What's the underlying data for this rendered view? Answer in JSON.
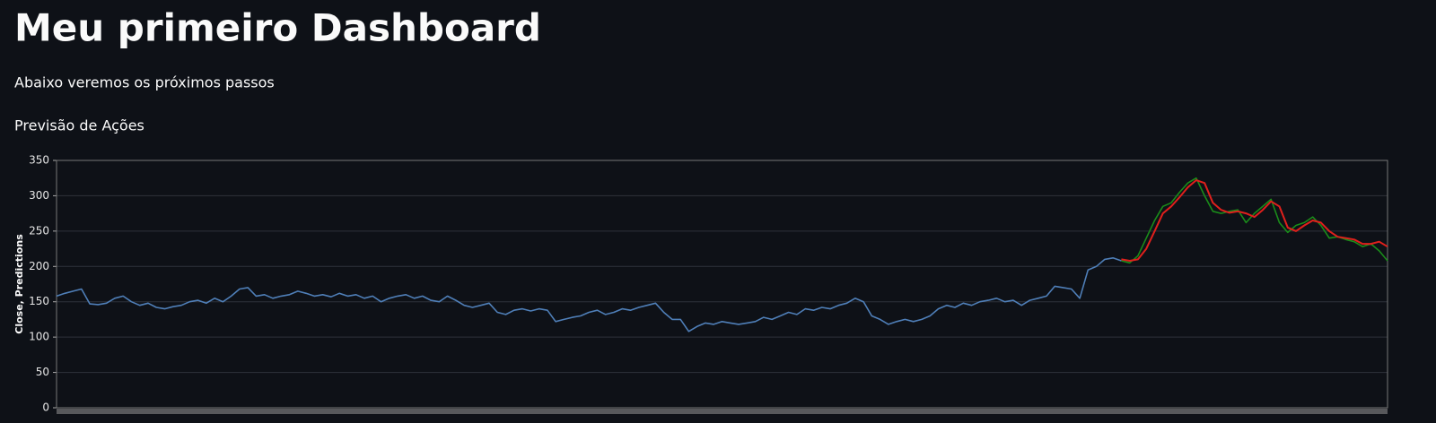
{
  "header": {
    "title": "Meu primeiro Dashboard"
  },
  "texts": [
    "Abaixo veremos os próximos passos",
    "Previsão de Ações"
  ],
  "chart_data": {
    "type": "line",
    "ylabel": "Close, Predictions",
    "ylim": [
      0,
      350
    ],
    "yticks": [
      0,
      50,
      100,
      150,
      200,
      250,
      300,
      350
    ],
    "grid": true,
    "series": [
      {
        "color": "#4f7fb8",
        "values": [
          158,
          162,
          165,
          168,
          147,
          146,
          148,
          155,
          158,
          150,
          145,
          148,
          142,
          140,
          143,
          145,
          150,
          152,
          148,
          155,
          150,
          158,
          168,
          170,
          158,
          160,
          155,
          158,
          160,
          165,
          162,
          158,
          160,
          157,
          162,
          158,
          160,
          155,
          158,
          150,
          155,
          158,
          160,
          155,
          158,
          152,
          150,
          158,
          152,
          145,
          142,
          145,
          148,
          135,
          132,
          138,
          140,
          137,
          140,
          138,
          122,
          125,
          128,
          130,
          135,
          138,
          132,
          135,
          140,
          138,
          142,
          145,
          148,
          135,
          125,
          125,
          108,
          115,
          120,
          118,
          122,
          120,
          118,
          120,
          122,
          128,
          125,
          130,
          135,
          132,
          140,
          138,
          142,
          140,
          145,
          148,
          155,
          150,
          130,
          125,
          118,
          122,
          125,
          122,
          125,
          130,
          140,
          145,
          142,
          148,
          145,
          150,
          152,
          155,
          150,
          152,
          145,
          152,
          155,
          158,
          172,
          170,
          168,
          155,
          195,
          200,
          210,
          212,
          208,
          null,
          null,
          null,
          null,
          null,
          null,
          null,
          null,
          null,
          null,
          null,
          null,
          null,
          null,
          null,
          null,
          null,
          null,
          null,
          null,
          null,
          null,
          null,
          null,
          null,
          null,
          null,
          null,
          null,
          null,
          null,
          null
        ]
      },
      {
        "color": "#1a8c1a",
        "values": [
          null,
          null,
          null,
          null,
          null,
          null,
          null,
          null,
          null,
          null,
          null,
          null,
          null,
          null,
          null,
          null,
          null,
          null,
          null,
          null,
          null,
          null,
          null,
          null,
          null,
          null,
          null,
          null,
          null,
          null,
          null,
          null,
          null,
          null,
          null,
          null,
          null,
          null,
          null,
          null,
          null,
          null,
          null,
          null,
          null,
          null,
          null,
          null,
          null,
          null,
          null,
          null,
          null,
          null,
          null,
          null,
          null,
          null,
          null,
          null,
          null,
          null,
          null,
          null,
          null,
          null,
          null,
          null,
          null,
          null,
          null,
          null,
          null,
          null,
          null,
          null,
          null,
          null,
          null,
          null,
          null,
          null,
          null,
          null,
          null,
          null,
          null,
          null,
          null,
          null,
          null,
          null,
          null,
          null,
          null,
          null,
          null,
          null,
          null,
          null,
          null,
          null,
          null,
          null,
          null,
          null,
          null,
          null,
          null,
          null,
          null,
          null,
          null,
          null,
          null,
          null,
          null,
          null,
          null,
          null,
          null,
          null,
          null,
          null,
          null,
          null,
          null,
          null,
          208,
          205,
          215,
          240,
          265,
          285,
          290,
          305,
          318,
          325,
          300,
          278,
          275,
          278,
          280,
          262,
          275,
          285,
          295,
          262,
          248,
          258,
          262,
          270,
          258,
          240,
          242,
          238,
          235,
          228,
          232,
          222,
          208
        ]
      },
      {
        "color": "#e0201c",
        "values": [
          null,
          null,
          null,
          null,
          null,
          null,
          null,
          null,
          null,
          null,
          null,
          null,
          null,
          null,
          null,
          null,
          null,
          null,
          null,
          null,
          null,
          null,
          null,
          null,
          null,
          null,
          null,
          null,
          null,
          null,
          null,
          null,
          null,
          null,
          null,
          null,
          null,
          null,
          null,
          null,
          null,
          null,
          null,
          null,
          null,
          null,
          null,
          null,
          null,
          null,
          null,
          null,
          null,
          null,
          null,
          null,
          null,
          null,
          null,
          null,
          null,
          null,
          null,
          null,
          null,
          null,
          null,
          null,
          null,
          null,
          null,
          null,
          null,
          null,
          null,
          null,
          null,
          null,
          null,
          null,
          null,
          null,
          null,
          null,
          null,
          null,
          null,
          null,
          null,
          null,
          null,
          null,
          null,
          null,
          null,
          null,
          null,
          null,
          null,
          null,
          null,
          null,
          null,
          null,
          null,
          null,
          null,
          null,
          null,
          null,
          null,
          null,
          null,
          null,
          null,
          null,
          null,
          null,
          null,
          null,
          null,
          null,
          null,
          null,
          null,
          null,
          null,
          null,
          210,
          208,
          210,
          225,
          250,
          275,
          285,
          298,
          312,
          322,
          318,
          290,
          280,
          276,
          278,
          275,
          270,
          280,
          292,
          285,
          255,
          250,
          258,
          265,
          262,
          250,
          242,
          240,
          238,
          232,
          232,
          235,
          228
        ]
      }
    ]
  }
}
